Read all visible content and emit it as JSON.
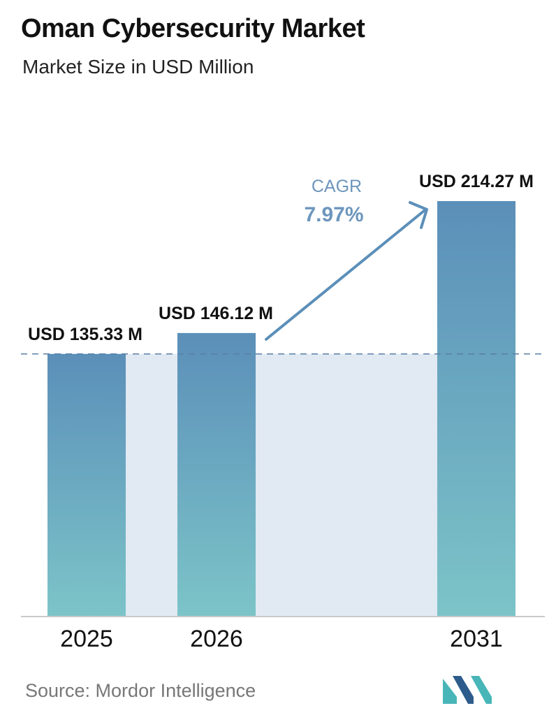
{
  "header": {
    "title": "Oman Cybersecurity Market",
    "subtitle": "Market Size in USD Million"
  },
  "chart_data": {
    "type": "bar",
    "categories": [
      "2025",
      "2026",
      "2031"
    ],
    "values": [
      135.33,
      146.12,
      214.27
    ],
    "value_labels": [
      "USD 135.33 M",
      "USD 146.12 M",
      "USD 214.27 M"
    ],
    "title": "Oman Cybersecurity Market",
    "subtitle": "Market Size in USD Million",
    "xlabel": "",
    "ylabel": "",
    "ylim": [
      0,
      230
    ],
    "grid": false,
    "reference_line": 135.33,
    "annotation": {
      "label": "CAGR",
      "value": "7.97%"
    }
  },
  "footer": {
    "source": "Source:  Mordor Intelligence"
  },
  "colors": {
    "bar_top": "#5b8fb9",
    "bar_bottom": "#7cc4c8",
    "band": "#e1e9f2",
    "arrow": "#5b8fb9",
    "cagr_text": "#6d96bd",
    "logo_teal": "#48b6b8",
    "logo_blue": "#2d5c8c"
  }
}
